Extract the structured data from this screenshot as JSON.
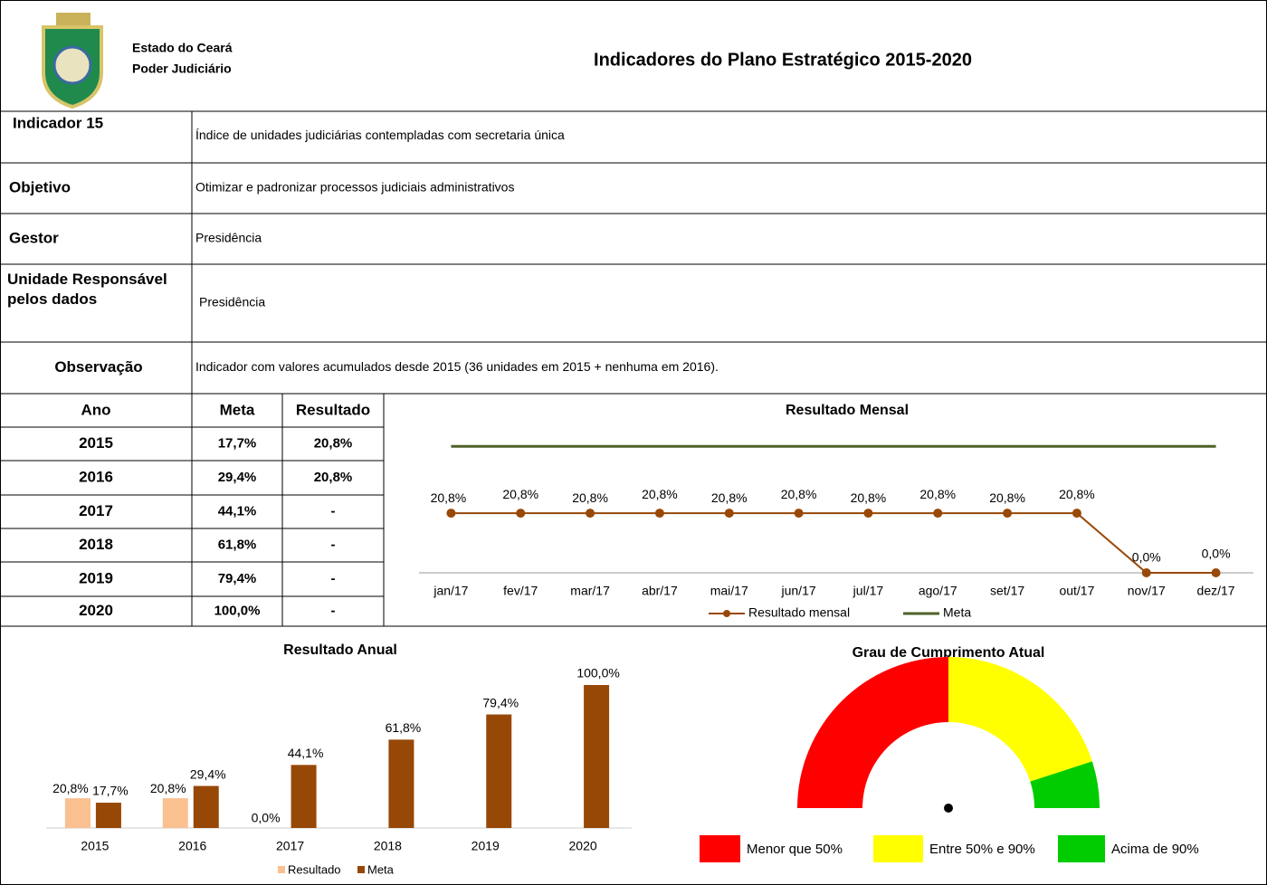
{
  "header": {
    "state": "Estado do Ceará",
    "branch": "Poder Judiciário",
    "title": "Indicadores do Plano Estratégico 2015-2020"
  },
  "info": [
    {
      "label": "Indicador 15",
      "text": "Índice de unidades judiciárias contempladas com secretaria única"
    },
    {
      "label": "Objetivo",
      "text": "Otimizar e padronizar processos judiciais administrativos"
    },
    {
      "label": "Gestor",
      "text": "Presidência"
    },
    {
      "label": "Unidade Responsável pelos dados",
      "text": "Presidência"
    },
    {
      "label": "Observação",
      "text": "Indicador com valores acumulados desde 2015 (36 unidades em 2015 +  nenhuma em 2016)."
    }
  ],
  "table": {
    "columns": [
      "Ano",
      "Meta",
      "Resultado"
    ],
    "rows": [
      [
        "2015",
        "17,7%",
        "20,8%"
      ],
      [
        "2016",
        "29,4%",
        "20,8%"
      ],
      [
        "2017",
        "44,1%",
        "-"
      ],
      [
        "2018",
        "61,8%",
        "-"
      ],
      [
        "2019",
        "79,4%",
        "-"
      ],
      [
        "2020",
        "100,0%",
        "-"
      ]
    ]
  },
  "chart_data": [
    {
      "type": "line",
      "title": "Resultado Mensal",
      "categories": [
        "jan/17",
        "fev/17",
        "mar/17",
        "abr/17",
        "mai/17",
        "jun/17",
        "jul/17",
        "ago/17",
        "set/17",
        "out/17",
        "nov/17",
        "dez/17"
      ],
      "series": [
        {
          "name": "Resultado mensal",
          "color": "#984807",
          "values": [
            20.8,
            20.8,
            20.8,
            20.8,
            20.8,
            20.8,
            20.8,
            20.8,
            20.8,
            20.8,
            0,
            0
          ],
          "value_labels": [
            "20,8%",
            "20,8%",
            "20,8%",
            "20,8%",
            "20,8%",
            "20,8%",
            "20,8%",
            "20,8%",
            "20,8%",
            "20,8%",
            "0,0%",
            "0,0%"
          ]
        },
        {
          "name": "Meta",
          "color": "#4f6228",
          "values": [
            44.1,
            44.1,
            44.1,
            44.1,
            44.1,
            44.1,
            44.1,
            44.1,
            44.1,
            44.1,
            44.1,
            44.1
          ]
        }
      ]
    },
    {
      "type": "bar",
      "title": "Resultado Anual",
      "categories": [
        "2015",
        "2016",
        "2017",
        "2018",
        "2019",
        "2020"
      ],
      "series": [
        {
          "name": "Resultado",
          "color": "#fac090",
          "values": [
            20.8,
            20.8,
            0,
            null,
            null,
            null
          ],
          "value_labels": [
            "20,8%",
            "20,8%",
            "0,0%",
            null,
            null,
            null
          ]
        },
        {
          "name": "Meta",
          "color": "#974806",
          "values": [
            17.7,
            29.4,
            44.1,
            61.8,
            79.4,
            100
          ],
          "value_labels": [
            "17,7%",
            "29,4%",
            "44,1%",
            "61,8%",
            "79,4%",
            "100,0%"
          ]
        }
      ]
    },
    {
      "type": "gauge",
      "title": "Grau de Cumprimento Atual",
      "categories": [
        "Menor que 50%",
        "Entre 50% e 90%",
        "Acima de 90%"
      ],
      "values": [
        50,
        40,
        10
      ],
      "colors": [
        "#ff0000",
        "#ffff00",
        "#00cc00"
      ]
    }
  ]
}
